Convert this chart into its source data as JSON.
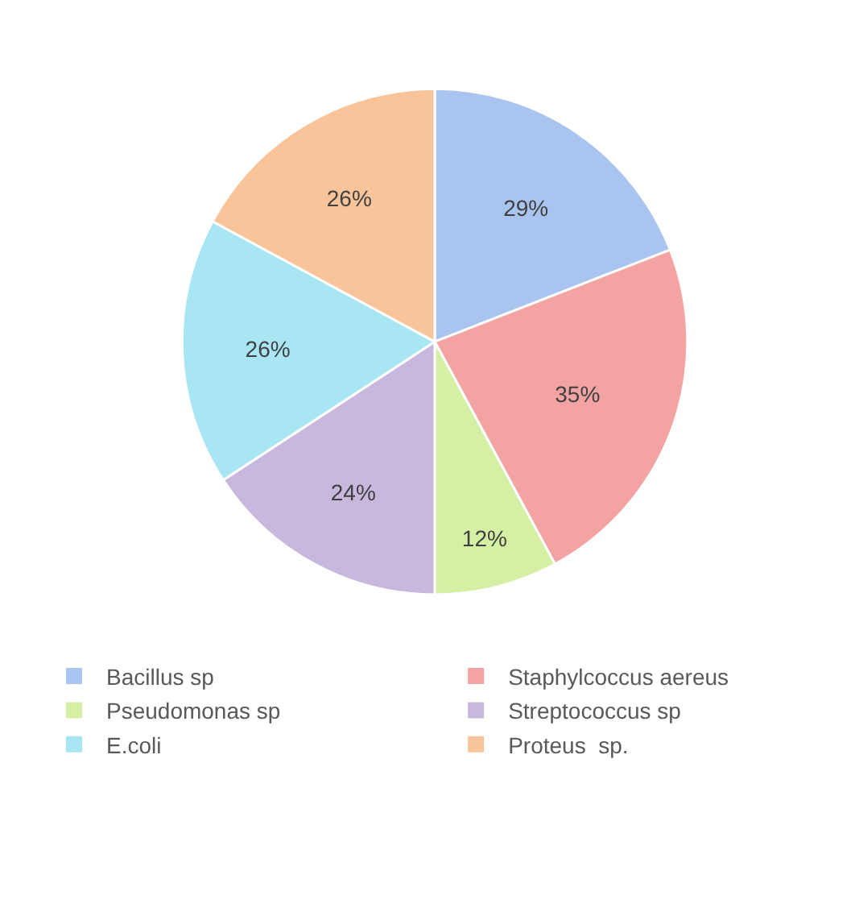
{
  "chart_data": {
    "type": "pie",
    "categories": [
      "Bacillus sp",
      "Staphylcoccus aereus",
      "Pseudomonas sp",
      "Streptococcus sp",
      "E.coli",
      "Proteus  sp."
    ],
    "values": [
      29,
      35,
      12,
      24,
      26,
      26
    ],
    "value_labels": [
      "29%",
      "35%",
      "12%",
      "24%",
      "26%",
      "26%"
    ],
    "colors": [
      "#a9c4ee",
      "#f4a3a3",
      "#d5f0a5",
      "#c9b8de",
      "#a9e6f4",
      "#f9c49a"
    ],
    "legend": "bottom"
  }
}
